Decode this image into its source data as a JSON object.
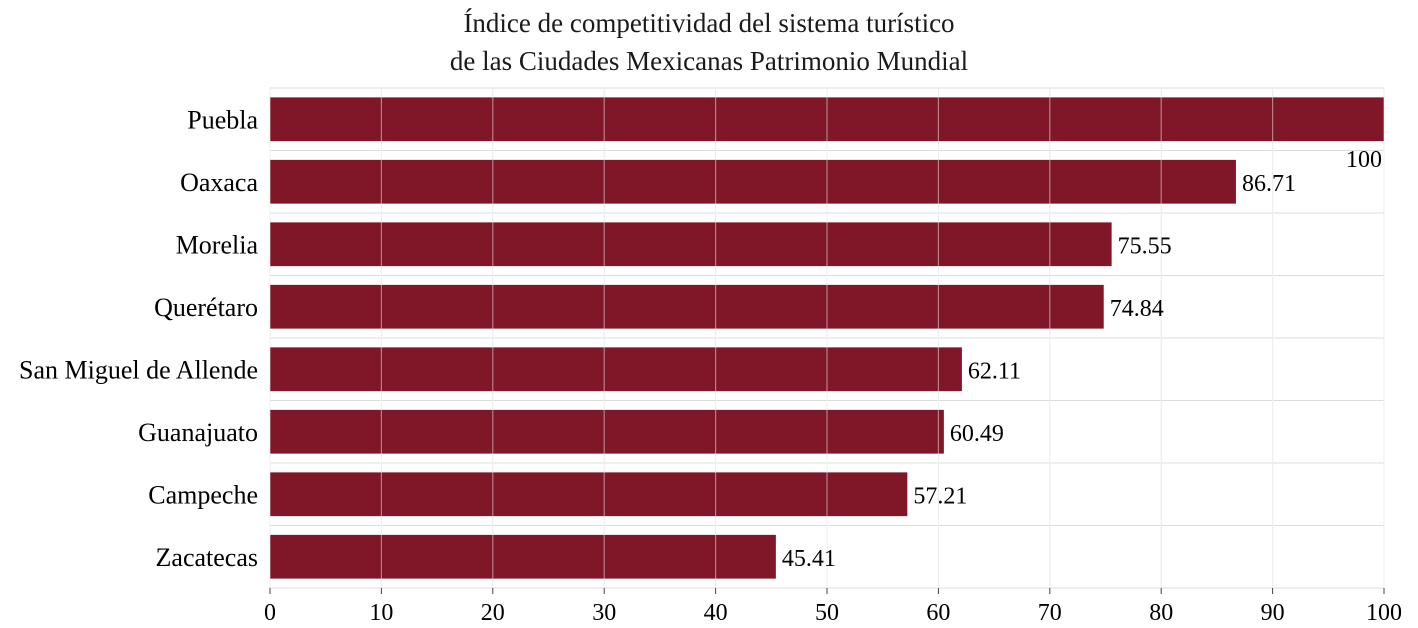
{
  "chart_data": {
    "type": "bar",
    "orientation": "horizontal",
    "title_lines": [
      "Índice de competitividad del sistema turístico",
      "de las Ciudades Mexicanas Patrimonio Mundial"
    ],
    "categories": [
      "Puebla",
      "Oaxaca",
      "Morelia",
      "Querétaro",
      "San Miguel de Allende",
      "Guanajuato",
      "Campeche",
      "Zacatecas"
    ],
    "values": [
      100,
      86.71,
      75.55,
      74.84,
      62.11,
      60.49,
      57.21,
      45.41
    ],
    "value_labels": [
      "100",
      "86.71",
      "75.55",
      "74.84",
      "62.11",
      "60.49",
      "57.21",
      "45.41"
    ],
    "xlim": [
      0,
      100
    ],
    "xticks": [
      0,
      10,
      20,
      30,
      40,
      50,
      60,
      70,
      80,
      90,
      100
    ],
    "grid": true,
    "legend": "none",
    "bar_color": "#7f1729",
    "grid_color": "#dcdcdc"
  }
}
